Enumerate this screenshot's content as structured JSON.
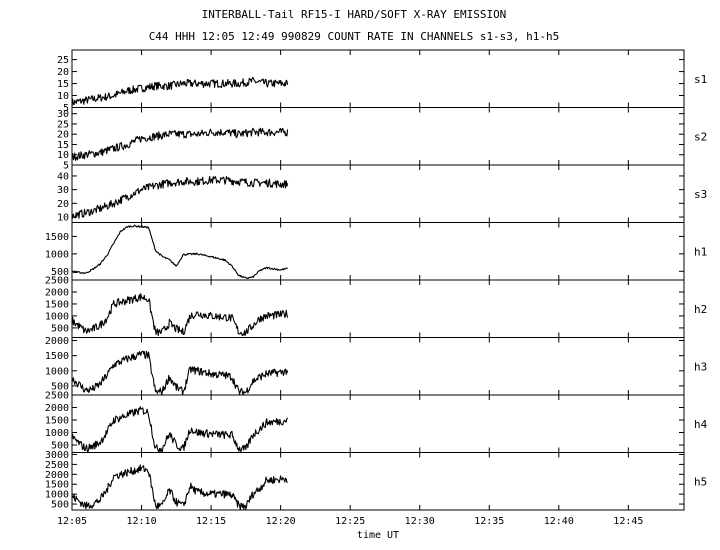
{
  "chart_data": {
    "type": "line",
    "title": "INTERBALL-Tail RF15-I HARD/SOFT X-RAY EMISSION",
    "subtitle": "C44 HHH 12:05 12:49 990829  COUNT RATE IN CHANNELS s1-s3, h1-h5",
    "xlabel": "time UT",
    "x_ticks": [
      "12:05",
      "12:10",
      "12:15",
      "12:20",
      "12:25",
      "12:30",
      "12:35",
      "12:40",
      "12:45"
    ],
    "xlim": [
      "12:05",
      "12:49"
    ],
    "grid": false,
    "panels": [
      {
        "name": "s1",
        "ylim": [
          5,
          29
        ],
        "y_ticks": [
          5,
          10,
          15,
          20,
          25
        ],
        "x": [
          "12:05",
          "12:06",
          "12:07",
          "12:08",
          "12:09",
          "12:10",
          "12:11",
          "12:12",
          "12:13",
          "12:14",
          "12:15",
          "12:16",
          "12:17",
          "12:18",
          "12:19",
          "12:20",
          "12:20:30"
        ],
        "values": [
          7,
          8,
          9,
          10,
          12,
          13,
          14,
          14,
          15,
          15,
          15,
          15,
          15,
          16,
          15,
          15,
          15
        ]
      },
      {
        "name": "s2",
        "ylim": [
          5,
          33
        ],
        "y_ticks": [
          5,
          10,
          15,
          20,
          25,
          30
        ],
        "x": [
          "12:05",
          "12:06",
          "12:07",
          "12:08",
          "12:09",
          "12:10",
          "12:11",
          "12:12",
          "12:13",
          "12:14",
          "12:15",
          "12:16",
          "12:17",
          "12:18",
          "12:19",
          "12:20",
          "12:20:30"
        ],
        "values": [
          9,
          10,
          11,
          13,
          15,
          18,
          19,
          20,
          20,
          20,
          21,
          21,
          20,
          21,
          21,
          21,
          21
        ]
      },
      {
        "name": "s3",
        "ylim": [
          6,
          48
        ],
        "y_ticks": [
          10,
          20,
          30,
          40
        ],
        "x": [
          "12:05",
          "12:06",
          "12:07",
          "12:08",
          "12:09",
          "12:10",
          "12:11",
          "12:12",
          "12:13",
          "12:14",
          "12:15",
          "12:16",
          "12:17",
          "12:18",
          "12:19",
          "12:20",
          "12:20:30"
        ],
        "values": [
          11,
          13,
          16,
          20,
          25,
          30,
          33,
          35,
          36,
          36,
          37,
          37,
          36,
          35,
          35,
          34,
          34
        ]
      },
      {
        "name": "h1",
        "ylim": [
          250,
          1900
        ],
        "y_ticks": [
          500,
          1000,
          1500
        ],
        "x": [
          "12:05",
          "12:06",
          "12:06:30",
          "12:07",
          "12:07:30",
          "12:08",
          "12:08:30",
          "12:09",
          "12:09:30",
          "12:10",
          "12:10:30",
          "12:11",
          "12:11:30",
          "12:12",
          "12:12:30",
          "12:13",
          "12:14",
          "12:15",
          "12:16",
          "12:16:30",
          "12:17",
          "12:17:30",
          "12:18",
          "12:18:30",
          "12:19",
          "12:20",
          "12:20:30"
        ],
        "values": [
          480,
          450,
          560,
          700,
          950,
          1300,
          1650,
          1780,
          1800,
          1780,
          1760,
          1100,
          920,
          830,
          650,
          980,
          1000,
          920,
          820,
          650,
          380,
          300,
          330,
          520,
          600,
          540,
          580
        ]
      },
      {
        "name": "h2",
        "ylim": [
          100,
          2500
        ],
        "y_ticks": [
          500,
          1000,
          1500,
          2000,
          2500
        ],
        "x": [
          "12:05",
          "12:06",
          "12:06:30",
          "12:07",
          "12:07:30",
          "12:08",
          "12:09",
          "12:10",
          "12:10:30",
          "12:11",
          "12:11:30",
          "12:12",
          "12:12:30",
          "12:13",
          "12:13:30",
          "12:14",
          "12:15",
          "12:16",
          "12:16:30",
          "12:17",
          "12:17:30",
          "12:18",
          "12:18:30",
          "12:19",
          "12:20",
          "12:20:30"
        ],
        "values": [
          800,
          350,
          450,
          600,
          900,
          1500,
          1650,
          1800,
          1700,
          300,
          330,
          700,
          450,
          320,
          1000,
          1100,
          1000,
          950,
          900,
          320,
          310,
          600,
          900,
          1000,
          1050,
          1100
        ]
      },
      {
        "name": "h3",
        "ylim": [
          200,
          2100
        ],
        "y_ticks": [
          500,
          1000,
          1500,
          2000
        ],
        "x": [
          "12:05",
          "12:06",
          "12:06:30",
          "12:07",
          "12:07:30",
          "12:08",
          "12:09",
          "12:10",
          "12:10:30",
          "12:11",
          "12:11:30",
          "12:12",
          "12:12:30",
          "12:13",
          "12:13:30",
          "12:14",
          "12:15",
          "12:16",
          "12:16:30",
          "12:17",
          "12:17:30",
          "12:18",
          "12:18:30",
          "12:19",
          "12:20",
          "12:20:30"
        ],
        "values": [
          750,
          350,
          400,
          550,
          850,
          1200,
          1400,
          1550,
          1500,
          300,
          320,
          800,
          450,
          300,
          1050,
          1000,
          900,
          850,
          800,
          300,
          290,
          650,
          800,
          900,
          950,
          1000
        ]
      },
      {
        "name": "h4",
        "ylim": [
          200,
          2500
        ],
        "y_ticks": [
          500,
          1000,
          1500,
          2000,
          2500
        ],
        "x": [
          "12:05",
          "12:06",
          "12:06:30",
          "12:07",
          "12:07:30",
          "12:08",
          "12:09",
          "12:10",
          "12:10:30",
          "12:11",
          "12:11:30",
          "12:12",
          "12:12:30",
          "12:13",
          "12:13:30",
          "12:14",
          "12:15",
          "12:16",
          "12:16:30",
          "12:17",
          "12:17:30",
          "12:18",
          "12:18:30",
          "12:19",
          "12:20",
          "12:20:30"
        ],
        "values": [
          800,
          350,
          450,
          600,
          1000,
          1500,
          1700,
          1900,
          1800,
          350,
          380,
          950,
          500,
          350,
          1150,
          1000,
          950,
          900,
          900,
          350,
          330,
          900,
          1150,
          1400,
          1450,
          1500
        ]
      },
      {
        "name": "h5",
        "ylim": [
          200,
          3100
        ],
        "y_ticks": [
          500,
          1000,
          1500,
          2000,
          2500,
          3000
        ],
        "x": [
          "12:05",
          "12:06",
          "12:06:30",
          "12:07",
          "12:07:30",
          "12:08",
          "12:09",
          "12:10",
          "12:10:30",
          "12:11",
          "12:11:30",
          "12:12",
          "12:12:30",
          "12:13",
          "12:13:30",
          "12:14",
          "12:15",
          "12:16",
          "12:16:30",
          "12:17",
          "12:17:30",
          "12:18",
          "12:18:30",
          "12:19",
          "12:20",
          "12:20:30"
        ],
        "values": [
          900,
          400,
          500,
          700,
          1200,
          1900,
          2100,
          2300,
          2200,
          400,
          420,
          1200,
          600,
          400,
          1400,
          1100,
          1000,
          1000,
          950,
          400,
          380,
          1000,
          1300,
          1700,
          1750,
          1800
        ]
      }
    ]
  }
}
